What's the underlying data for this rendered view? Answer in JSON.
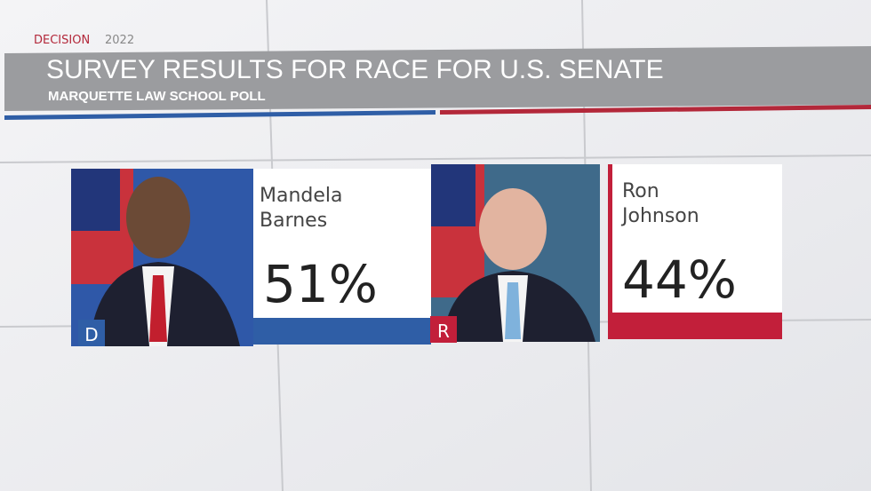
{
  "header": {
    "label": "DECISION",
    "year": "2022",
    "title": "SURVEY RESULTS FOR RACE FOR U.S. SENATE",
    "subtitle": "MARQUETTE LAW SCHOOL POLL"
  },
  "candidates": [
    {
      "first_name": "Mandela",
      "last_name": "Barnes",
      "party": "D",
      "percent": "51%"
    },
    {
      "first_name": "Ron",
      "last_name": "Johnson",
      "party": "R",
      "percent": "44%"
    }
  ]
}
